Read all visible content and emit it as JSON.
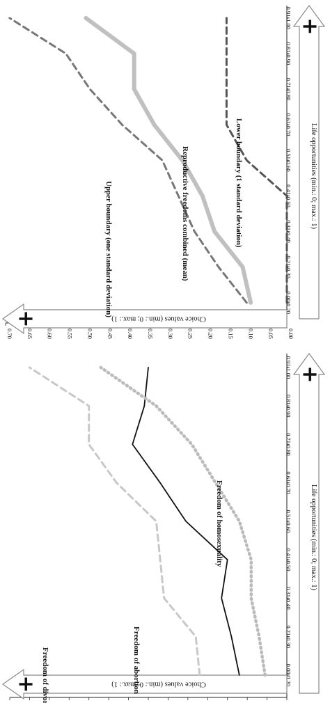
{
  "chart_data": [
    {
      "type": "line",
      "title": "",
      "xlabel": "Life opportunities (min.: 0; max.: 1)",
      "ylabel": "Choice values (min.: 0; max.: 1)",
      "categories": [
        "0.00-0.20",
        "0.21-0.30",
        "0.31-0.40",
        "0.41-0.50",
        "0.51-0.60",
        "0.61-0.70",
        "0.71-0.80",
        "0.81-0.90",
        "0.91-1.00"
      ],
      "y_ticks": [
        "0.00",
        "0.05",
        "0.10",
        "0.15",
        "0.20",
        "0.25",
        "0.30",
        "0.35",
        "0.40",
        "0.45",
        "0.50",
        "0.55",
        "0.60",
        "0.65",
        "0.70"
      ],
      "ylim": [
        0,
        0.7
      ],
      "plus_symbol": "+",
      "grid": false,
      "series": [
        {
          "name": "Freedom of abortion",
          "values": [
            0.12,
            0.14,
            0.165,
            0.15,
            0.255,
            0.32,
            0.39,
            0.36,
            0.35
          ],
          "style": "solid",
          "color": "#111111"
        },
        {
          "name": "Freedom of homosexuality",
          "values": [
            0.055,
            0.07,
            0.09,
            0.09,
            0.12,
            0.18,
            0.24,
            0.33,
            0.47
          ],
          "style": "dotted",
          "color": "#bbbbbb"
        },
        {
          "name": "Freedom of divorce",
          "values": [
            0.22,
            0.23,
            0.31,
            0.32,
            0.33,
            0.43,
            0.5,
            0.5,
            0.65
          ],
          "style": "dashed",
          "color": "#c8c8c8"
        }
      ]
    },
    {
      "type": "line",
      "title": "",
      "xlabel": "Life opportunities (min.: 0; max.: 1)",
      "ylabel": "Choice values (min.: 0; max.: 1)",
      "categories": [
        "0.00-0.20",
        "0.21-0.30",
        "0.31-0.40",
        "0.41-0.50",
        "0.51-0.60",
        "0.61-0.70",
        "0.71-0.80",
        "0.81-0.90",
        "0.91-1.00"
      ],
      "y_ticks": [
        "0.00",
        "0.05",
        "0.10",
        "0.15",
        "0.20",
        "0.25",
        "0.30",
        "0.35",
        "0.40",
        "0.45",
        "0.50",
        "0.55",
        "0.60",
        "0.65",
        "0.70"
      ],
      "ylim": [
        0,
        0.7
      ],
      "plus_symbol": "+",
      "grid": false,
      "series": [
        {
          "name": "Reproductive freedoms combined (mean)",
          "values": [
            0.09,
            0.11,
            0.18,
            0.21,
            0.26,
            0.33,
            0.38,
            0.38,
            0.5
          ],
          "style": "solid-thick",
          "color": "#c0c0c0"
        },
        {
          "name": "Upper boundary (one standard deviation)",
          "values": [
            0.1,
            0.17,
            0.23,
            0.27,
            0.31,
            0.41,
            0.49,
            0.55,
            0.69
          ],
          "style": "dashed",
          "color": "#777777"
        },
        {
          "name": "Lower boundary (1 standard deviation)",
          "values": [
            0.0,
            0.0,
            0.0,
            0.0,
            0.1,
            0.15,
            0.15,
            0.15,
            0.15
          ],
          "style": "dashed",
          "color": "#555555"
        }
      ]
    }
  ]
}
